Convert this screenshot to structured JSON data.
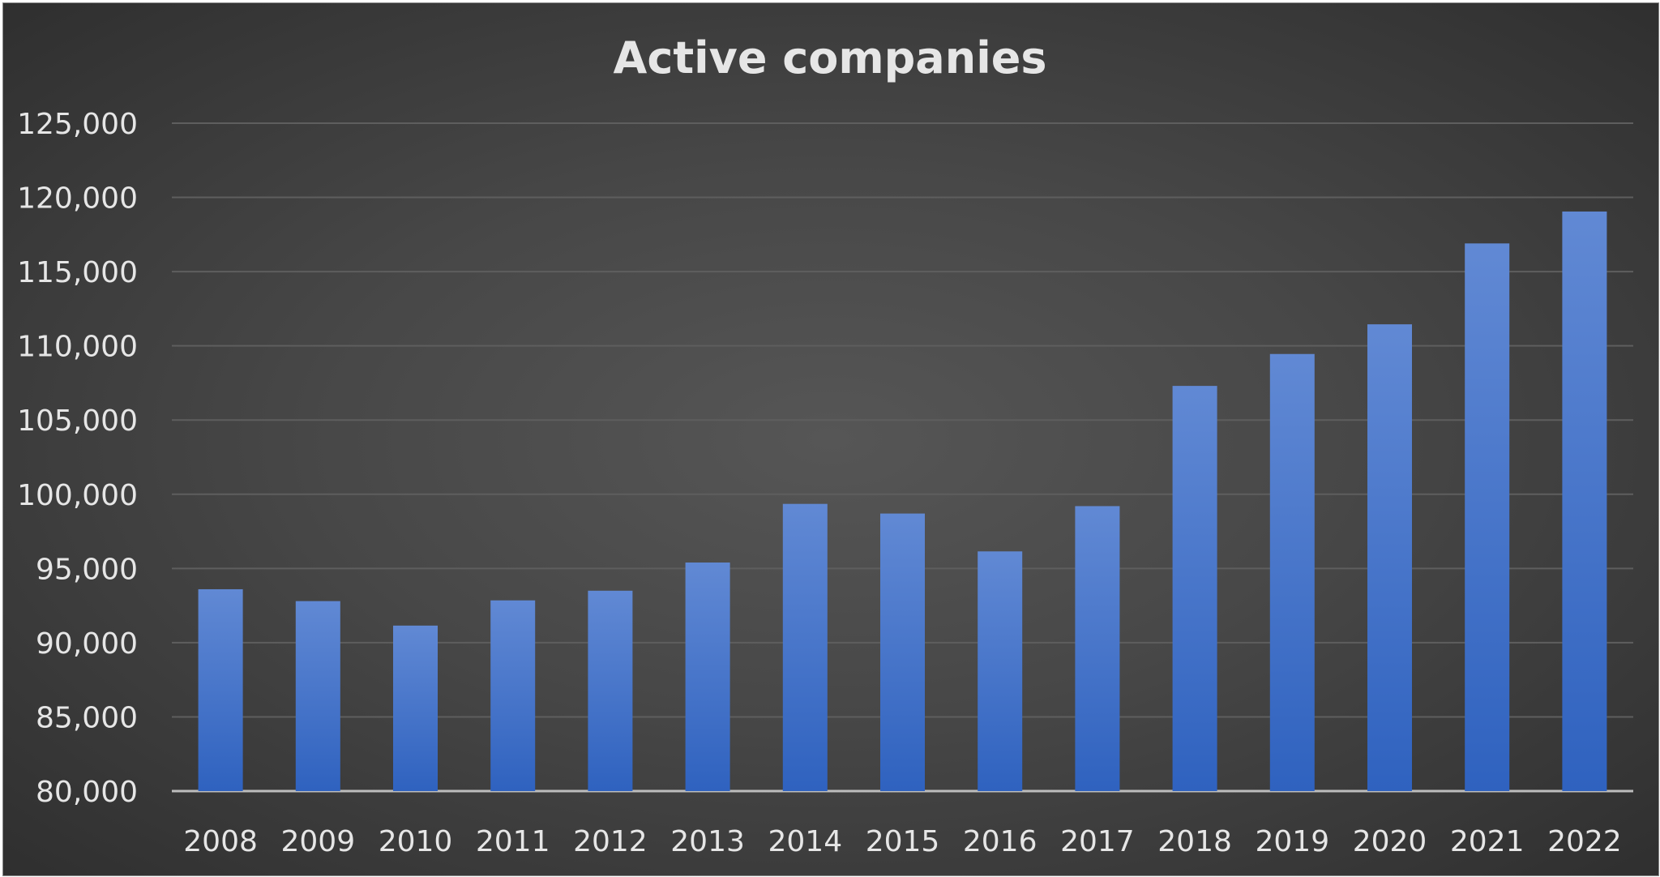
{
  "chart_data": {
    "type": "bar",
    "title": "Active companies",
    "xlabel": "",
    "ylabel": "",
    "categories": [
      "2008",
      "2009",
      "2010",
      "2011",
      "2012",
      "2013",
      "2014",
      "2015",
      "2016",
      "2017",
      "2018",
      "2019",
      "2020",
      "2021",
      "2022"
    ],
    "values": [
      93600,
      92800,
      91150,
      92850,
      93500,
      95400,
      99350,
      98700,
      96150,
      99200,
      107300,
      109450,
      111450,
      116900,
      119050
    ],
    "ylim": [
      80000,
      125000
    ],
    "yticks": [
      80000,
      85000,
      90000,
      95000,
      100000,
      105000,
      110000,
      115000,
      120000,
      125000
    ],
    "ytick_labels": [
      "80,000",
      "85,000",
      "90,000",
      "95,000",
      "100,000",
      "105,000",
      "110,000",
      "115,000",
      "120,000",
      "125,000"
    ],
    "grid": true,
    "legend": "none",
    "colors": {
      "bar_top": "#6189d4",
      "bar_bottom": "#2f62bf",
      "background": "#474747",
      "grid": "#5e5e5e",
      "text": "#e6e6e6"
    }
  }
}
